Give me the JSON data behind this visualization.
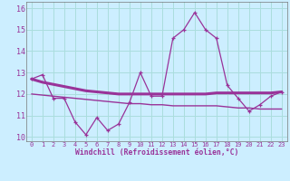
{
  "xlabel": "Windchill (Refroidissement éolien,°C)",
  "background_color": "#cceeff",
  "grid_color": "#aadddd",
  "line_color": "#993399",
  "hours": [
    0,
    1,
    2,
    3,
    4,
    5,
    6,
    7,
    8,
    9,
    10,
    11,
    12,
    13,
    14,
    15,
    16,
    17,
    18,
    19,
    20,
    21,
    22,
    23
  ],
  "windchill": [
    12.7,
    12.9,
    11.8,
    11.8,
    10.7,
    10.1,
    10.9,
    10.3,
    10.6,
    11.6,
    13.0,
    11.9,
    11.9,
    14.6,
    15.0,
    15.8,
    15.0,
    14.6,
    12.4,
    11.8,
    11.2,
    11.5,
    11.9,
    12.1
  ],
  "temp_line1": [
    12.7,
    12.55,
    12.45,
    12.35,
    12.25,
    12.15,
    12.1,
    12.05,
    12.0,
    12.0,
    12.0,
    12.0,
    12.0,
    12.0,
    12.0,
    12.0,
    12.0,
    12.05,
    12.05,
    12.05,
    12.05,
    12.05,
    12.05,
    12.1
  ],
  "temp_line2": [
    12.0,
    11.95,
    11.9,
    11.85,
    11.8,
    11.75,
    11.7,
    11.65,
    11.6,
    11.55,
    11.55,
    11.5,
    11.5,
    11.45,
    11.45,
    11.45,
    11.45,
    11.45,
    11.4,
    11.35,
    11.35,
    11.3,
    11.3,
    11.3
  ],
  "ylim": [
    9.8,
    16.3
  ],
  "yticks": [
    10,
    11,
    12,
    13,
    14,
    15,
    16
  ],
  "xlim": [
    -0.5,
    23.5
  ]
}
